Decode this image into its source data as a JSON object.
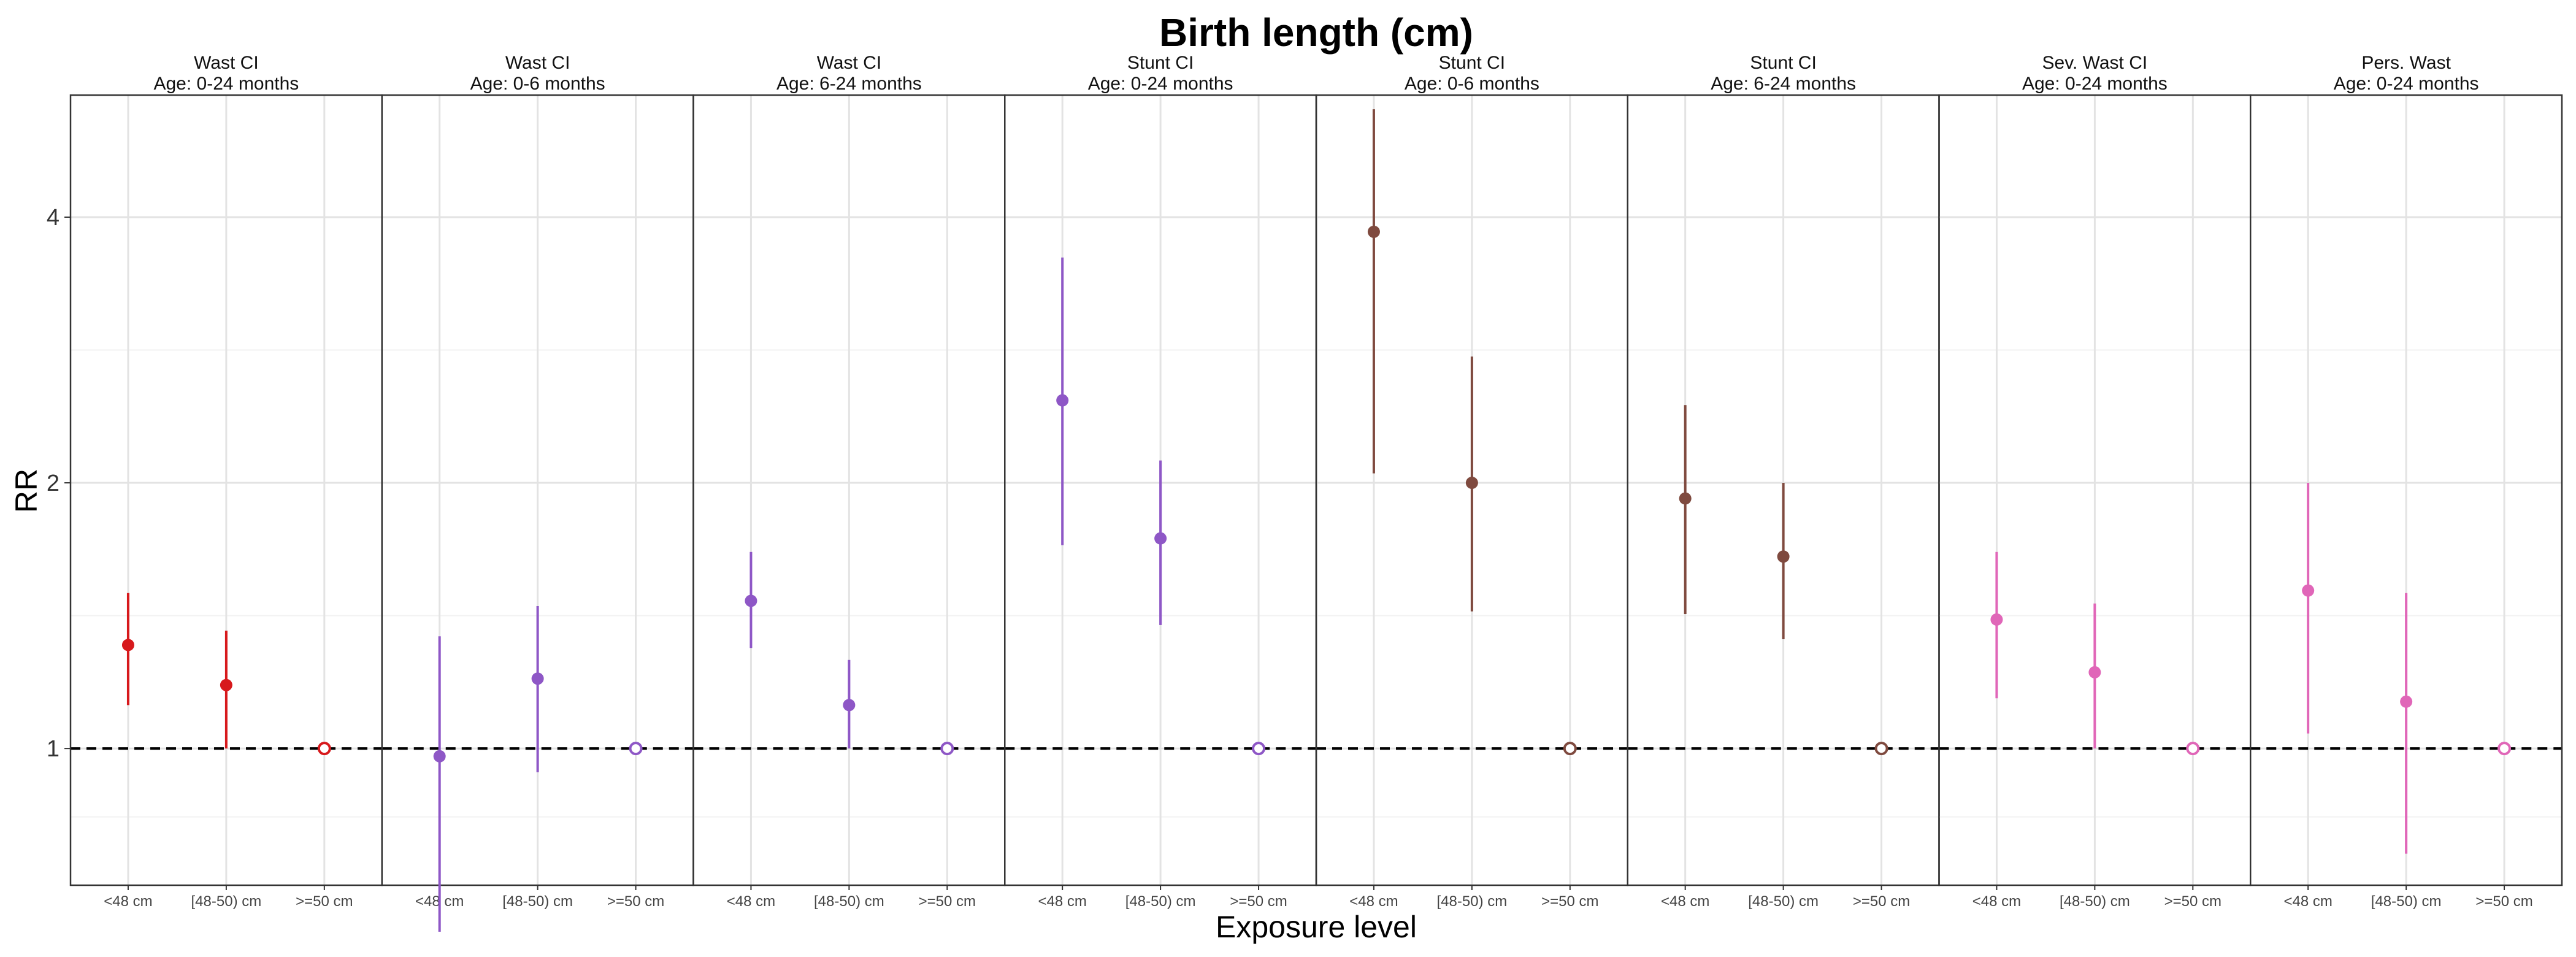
{
  "chart_data": {
    "type": "scatter",
    "title": "Birth length (cm)",
    "xlabel": "Exposure level",
    "ylabel": "RR",
    "y_scale": "log",
    "ylim": [
      0.7,
      5.5
    ],
    "y_ticks": [
      "1",
      "2",
      "4"
    ],
    "reference_line": 1,
    "grid": true,
    "x_categories": [
      "<48 cm",
      "[48-50) cm",
      ">=50 cm"
    ],
    "panels": [
      {
        "strip_line1": "Wast CI",
        "strip_line2": "Age: 0-24 months",
        "color": "#d7191c",
        "points": [
          {
            "x": "<48 cm",
            "rr": 1.31,
            "lower": 1.12,
            "upper": 1.5
          },
          {
            "x": "[48-50) cm",
            "rr": 1.18,
            "lower": 1.0,
            "upper": 1.36
          },
          {
            "x": ">=50 cm",
            "rr": 1.0,
            "reference": true
          }
        ]
      },
      {
        "strip_line1": "Wast CI",
        "strip_line2": "Age: 0-6 months",
        "color": "#8e57c6",
        "points": [
          {
            "x": "<48 cm",
            "rr": 0.98,
            "lower": 0.62,
            "upper": 1.34
          },
          {
            "x": "[48-50) cm",
            "rr": 1.2,
            "lower": 0.94,
            "upper": 1.45
          },
          {
            "x": ">=50 cm",
            "rr": 1.0,
            "reference": true
          }
        ]
      },
      {
        "strip_line1": "Wast CI",
        "strip_line2": "Age: 6-24 months",
        "color": "#8e57c6",
        "points": [
          {
            "x": "<48 cm",
            "rr": 1.47,
            "lower": 1.3,
            "upper": 1.67
          },
          {
            "x": "[48-50) cm",
            "rr": 1.12,
            "lower": 1.0,
            "upper": 1.26
          },
          {
            "x": ">=50 cm",
            "rr": 1.0,
            "reference": true
          }
        ]
      },
      {
        "strip_line1": "Stunt CI",
        "strip_line2": "Age: 0-24 months",
        "color": "#8e57c6",
        "points": [
          {
            "x": "<48 cm",
            "rr": 2.48,
            "lower": 1.7,
            "upper": 3.6
          },
          {
            "x": "[48-50) cm",
            "rr": 1.73,
            "lower": 1.38,
            "upper": 2.12
          },
          {
            "x": ">=50 cm",
            "rr": 1.0,
            "reference": true
          }
        ]
      },
      {
        "strip_line1": "Stunt CI",
        "strip_line2": "Age: 0-6 months",
        "color": "#7f4a3f",
        "points": [
          {
            "x": "<48 cm",
            "rr": 3.85,
            "lower": 2.05,
            "upper": 5.3
          },
          {
            "x": "[48-50) cm",
            "rr": 2.0,
            "lower": 1.43,
            "upper": 2.78
          },
          {
            "x": ">=50 cm",
            "rr": 1.0,
            "reference": true
          }
        ]
      },
      {
        "strip_line1": "Stunt CI",
        "strip_line2": "Age: 6-24 months",
        "color": "#7f4a3f",
        "points": [
          {
            "x": "<48 cm",
            "rr": 1.92,
            "lower": 1.42,
            "upper": 2.45
          },
          {
            "x": "[48-50) cm",
            "rr": 1.65,
            "lower": 1.33,
            "upper": 2.0
          },
          {
            "x": ">=50 cm",
            "rr": 1.0,
            "reference": true
          }
        ]
      },
      {
        "strip_line1": "Sev. Wast CI",
        "strip_line2": "Age: 0-24 months",
        "color": "#e066b8",
        "points": [
          {
            "x": "<48 cm",
            "rr": 1.4,
            "lower": 1.14,
            "upper": 1.67
          },
          {
            "x": "[48-50) cm",
            "rr": 1.22,
            "lower": 1.0,
            "upper": 1.46
          },
          {
            "x": ">=50 cm",
            "rr": 1.0,
            "reference": true
          }
        ]
      },
      {
        "strip_line1": "Pers. Wast",
        "strip_line2": "Age: 0-24 months",
        "color": "#e066b8",
        "points": [
          {
            "x": "<48 cm",
            "rr": 1.51,
            "lower": 1.04,
            "upper": 2.0
          },
          {
            "x": "[48-50) cm",
            "rr": 1.13,
            "lower": 0.76,
            "upper": 1.5
          },
          {
            "x": ">=50 cm",
            "rr": 1.0,
            "reference": true
          }
        ]
      }
    ]
  }
}
